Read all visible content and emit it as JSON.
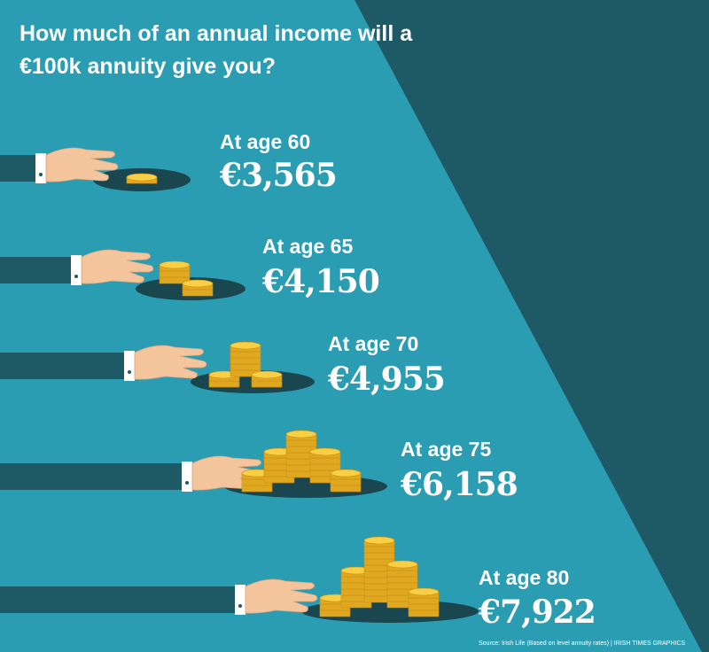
{
  "title_lines": [
    "How much of an annual income will a",
    "€100k  annuity give you?"
  ],
  "items": [
    {
      "label": "At age 60",
      "value": "€3,565"
    },
    {
      "label": "At age 65",
      "value": "€4,150"
    },
    {
      "label": "At age 70",
      "value": "€4,955"
    },
    {
      "label": "At age 75",
      "value": "€6,158"
    },
    {
      "label": "At age 80",
      "value": "€7,922"
    }
  ],
  "source": "Source: Irish Life (Based on level annuity rates) | IRISH TIMES GRAPHICS"
}
